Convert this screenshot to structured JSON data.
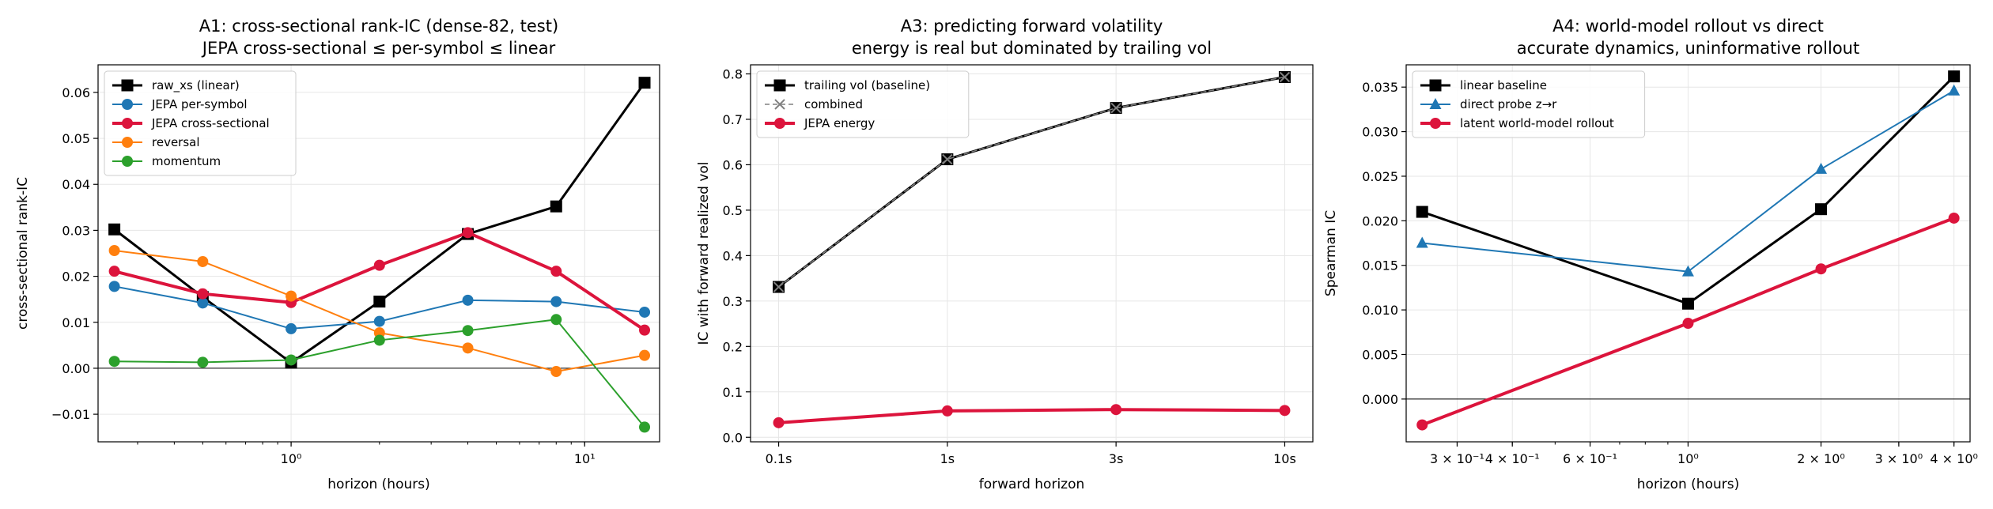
{
  "colors": {
    "linear": "#000000",
    "blue": "#1f77b4",
    "red": "#dc143c",
    "orange": "#ff7f0e",
    "green": "#2ca02c",
    "gray": "#808080"
  },
  "chart_data": [
    {
      "type": "line",
      "title": "A1: cross-sectional rank-IC (dense-82, test)",
      "subtitle": "JEPA cross-sectional ≤ per-symbol ≤ linear",
      "xlabel": "horizon (hours)",
      "ylabel": "cross-sectional rank-IC",
      "xscale": "log",
      "xlim": [
        0.22,
        18
      ],
      "ylim": [
        -0.016,
        0.066
      ],
      "grid": true,
      "zero_line": true,
      "legend_position": "top-left",
      "x_ticks": [
        {
          "value": 1,
          "label": "10⁰"
        },
        {
          "value": 10,
          "label": "10¹"
        }
      ],
      "y_ticks": [
        {
          "value": -0.01,
          "label": "−0.01"
        },
        {
          "value": 0.0,
          "label": "0.00"
        },
        {
          "value": 0.01,
          "label": "0.01"
        },
        {
          "value": 0.02,
          "label": "0.02"
        },
        {
          "value": 0.03,
          "label": "0.03"
        },
        {
          "value": 0.04,
          "label": "0.04"
        },
        {
          "value": 0.05,
          "label": "0.05"
        },
        {
          "value": 0.06,
          "label": "0.06"
        }
      ],
      "x": [
        0.25,
        0.5,
        1,
        2,
        4,
        8,
        16
      ],
      "series": [
        {
          "name": "raw_xs (linear)",
          "color": "#000000",
          "marker": "square",
          "linewidth": 3,
          "values": [
            0.0302,
            0.0155,
            0.0012,
            0.0145,
            0.0292,
            0.0352,
            0.0621
          ]
        },
        {
          "name": "JEPA per-symbol",
          "color": "#1f77b4",
          "marker": "circle",
          "linewidth": 2,
          "values": [
            0.0178,
            0.0142,
            0.0086,
            0.0102,
            0.0148,
            0.0145,
            0.0122
          ]
        },
        {
          "name": "JEPA cross-sectional",
          "color": "#dc143c",
          "marker": "circle",
          "linewidth": 4,
          "values": [
            0.0211,
            0.0162,
            0.0143,
            0.0224,
            0.0295,
            0.0211,
            0.0083
          ]
        },
        {
          "name": "reversal",
          "color": "#ff7f0e",
          "marker": "circle",
          "linewidth": 2,
          "values": [
            0.0256,
            0.0232,
            0.0157,
            0.0077,
            0.0044,
            -0.0007,
            0.0028
          ]
        },
        {
          "name": "momentum",
          "color": "#2ca02c",
          "marker": "circle",
          "linewidth": 2,
          "values": [
            0.0015,
            0.0013,
            0.0018,
            0.0061,
            0.0082,
            0.0106,
            -0.0128
          ]
        }
      ]
    },
    {
      "type": "line",
      "title": "A3: predicting forward volatility",
      "subtitle": "energy is real but dominated by trailing vol",
      "xlabel": "forward horizon",
      "ylabel": "IC with forward realized vol",
      "xscale": "category",
      "ylim": [
        -0.01,
        0.82
      ],
      "grid": true,
      "legend_position": "top-left",
      "categories": [
        "0.1s",
        "1s",
        "3s",
        "10s"
      ],
      "y_ticks": [
        {
          "value": 0.0,
          "label": "0.0"
        },
        {
          "value": 0.1,
          "label": "0.1"
        },
        {
          "value": 0.2,
          "label": "0.2"
        },
        {
          "value": 0.3,
          "label": "0.3"
        },
        {
          "value": 0.4,
          "label": "0.4"
        },
        {
          "value": 0.5,
          "label": "0.5"
        },
        {
          "value": 0.6,
          "label": "0.6"
        },
        {
          "value": 0.7,
          "label": "0.7"
        },
        {
          "value": 0.8,
          "label": "0.8"
        }
      ],
      "series": [
        {
          "name": "trailing vol (baseline)",
          "color": "#000000",
          "marker": "square",
          "linewidth": 3,
          "values": [
            0.331,
            0.612,
            0.725,
            0.793
          ]
        },
        {
          "name": "combined",
          "color": "#808080",
          "marker": "x",
          "linewidth": 1.5,
          "dashed": true,
          "values": [
            0.331,
            0.612,
            0.725,
            0.793
          ]
        },
        {
          "name": "JEPA energy",
          "color": "#dc143c",
          "marker": "circle",
          "linewidth": 4,
          "values": [
            0.032,
            0.058,
            0.061,
            0.059
          ]
        }
      ]
    },
    {
      "type": "line",
      "title": "A4: world-model rollout vs direct",
      "subtitle": "accurate dynamics, uninformative rollout",
      "xlabel": "horizon (hours)",
      "ylabel": "Spearman IC",
      "xscale": "log",
      "xlim": [
        0.23,
        4.35
      ],
      "ylim": [
        -0.0048,
        0.0375
      ],
      "grid": true,
      "zero_line": true,
      "legend_position": "top-left",
      "x_ticks": [
        {
          "value": 0.3,
          "label": "3 × 10⁻¹"
        },
        {
          "value": 0.4,
          "label": "4 × 10⁻¹"
        },
        {
          "value": 0.6,
          "label": "6 × 10⁻¹"
        },
        {
          "value": 1,
          "label": "10⁰"
        },
        {
          "value": 2,
          "label": "2 × 10⁰"
        },
        {
          "value": 3,
          "label": "3 × 10⁰"
        },
        {
          "value": 4,
          "label": "4 × 10⁰"
        }
      ],
      "y_ticks": [
        {
          "value": 0.0,
          "label": "0.000"
        },
        {
          "value": 0.005,
          "label": "0.005"
        },
        {
          "value": 0.01,
          "label": "0.010"
        },
        {
          "value": 0.015,
          "label": "0.015"
        },
        {
          "value": 0.02,
          "label": "0.020"
        },
        {
          "value": 0.025,
          "label": "0.025"
        },
        {
          "value": 0.03,
          "label": "0.030"
        },
        {
          "value": 0.035,
          "label": "0.035"
        }
      ],
      "x": [
        0.25,
        1,
        2,
        4
      ],
      "series": [
        {
          "name": "linear baseline",
          "color": "#000000",
          "marker": "square",
          "linewidth": 3,
          "values": [
            0.021,
            0.0107,
            0.0213,
            0.0362
          ]
        },
        {
          "name": "direct probe z→r",
          "color": "#1f77b4",
          "marker": "triangle",
          "linewidth": 2,
          "values": [
            0.0175,
            0.0143,
            0.0258,
            0.0346
          ]
        },
        {
          "name": "latent world-model rollout",
          "color": "#dc143c",
          "marker": "circle",
          "linewidth": 4,
          "values": [
            -0.0029,
            0.0085,
            0.0146,
            0.0203
          ]
        }
      ]
    }
  ]
}
